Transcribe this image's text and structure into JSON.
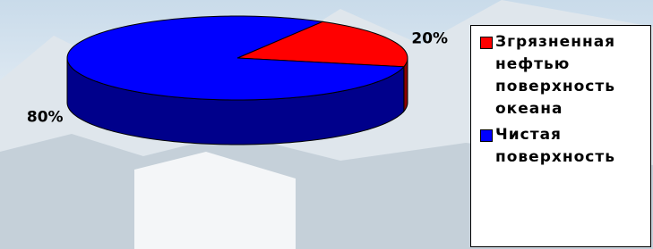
{
  "chart_data": {
    "type": "pie3d",
    "categories": [
      "Згрязненная нефтью поверхность океана",
      "Чистая поверхность"
    ],
    "values": [
      20,
      80
    ],
    "value_labels": [
      "20%",
      "80%"
    ],
    "colors": [
      "#ff0000",
      "#0000ff"
    ],
    "side_colors": [
      "#8b0000",
      "#00008b"
    ]
  }
}
